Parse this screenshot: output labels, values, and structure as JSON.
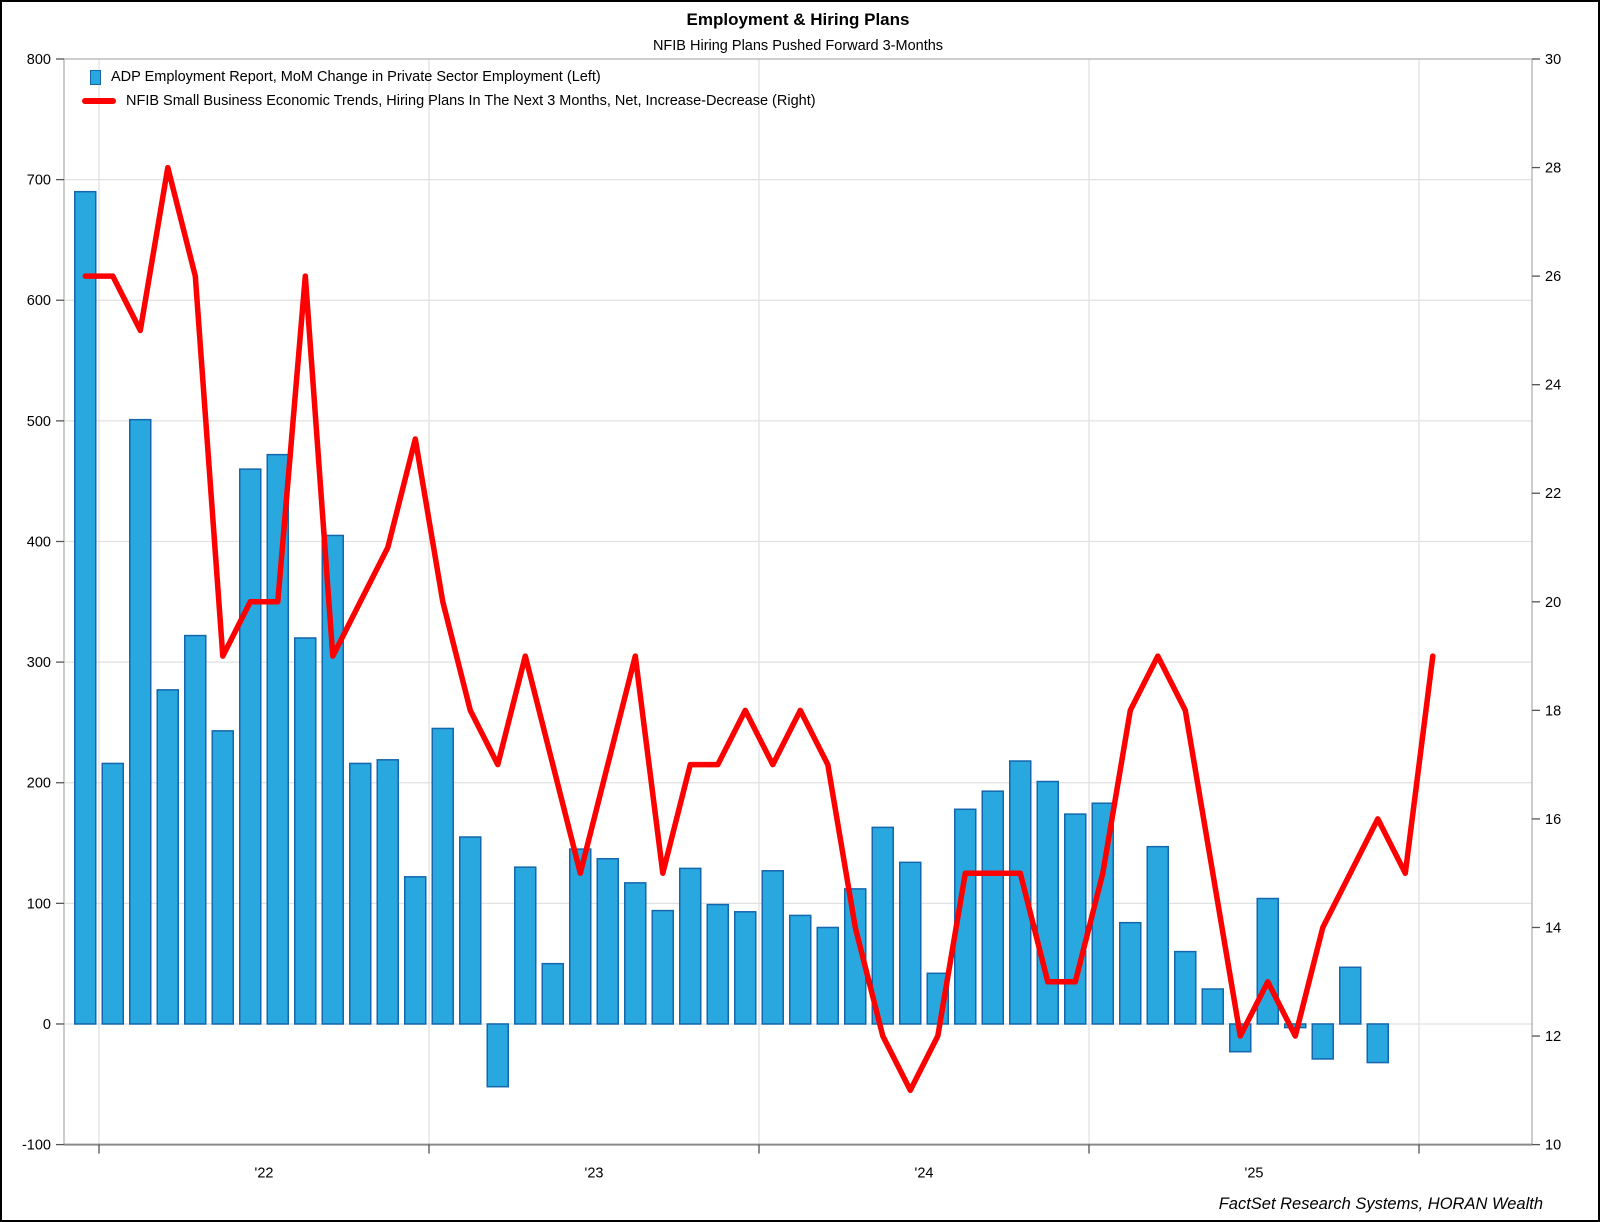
{
  "header": {
    "title": "Employment & Hiring Plans",
    "subtitle": "NFIB Hiring Plans Pushed Forward 3-Months"
  },
  "legend": {
    "adp_label": "ADP Employment Report, MoM Change in Private Sector Employment (Left)",
    "nfib_label": "NFIB Small Business Economic Trends, Hiring Plans In The Next 3 Months, Net, Increase-Decrease (Right)"
  },
  "attribution": "FactSet Research Systems, HORAN Wealth",
  "colors": {
    "bar_fill": "#29a8e0",
    "bar_stroke": "#1466ad",
    "line_color": "#fe0000",
    "grid_color": "#e1e1e1",
    "frame_color": "#b0b0b0",
    "axis_bottom_color": "#8a8a8a",
    "tick_color": "#555555",
    "text_color": "#000000"
  },
  "chart_data": {
    "type": "bar",
    "title": "Employment & Hiring Plans",
    "subtitle": "NFIB Hiring Plans Pushed Forward 3-Months",
    "grid": true,
    "legend_position": "top-left",
    "left_axis": {
      "min": -100,
      "max": 800,
      "tick_step": 100,
      "ticks": [
        "800",
        "700",
        "600",
        "500",
        "400",
        "300",
        "200",
        "100",
        "0",
        "-100"
      ]
    },
    "right_axis": {
      "min": 10,
      "max": 30,
      "tick_step": 2,
      "ticks": [
        "30",
        "28",
        "26",
        "24",
        "22",
        "20",
        "18",
        "16",
        "14",
        "12",
        "10"
      ]
    },
    "x_axis": {
      "year_labels": [
        "'22",
        "'23",
        "'24",
        "'25"
      ],
      "months_start": "2021-12",
      "months_end_bars": "2025-11",
      "months_end_line": "2026-01"
    },
    "bar_months": [
      "2021-12",
      "2022-01",
      "2022-02",
      "2022-03",
      "2022-04",
      "2022-05",
      "2022-06",
      "2022-07",
      "2022-08",
      "2022-09",
      "2022-10",
      "2022-11",
      "2022-12",
      "2023-01",
      "2023-02",
      "2023-03",
      "2023-04",
      "2023-05",
      "2023-06",
      "2023-07",
      "2023-08",
      "2023-09",
      "2023-10",
      "2023-11",
      "2023-12",
      "2024-01",
      "2024-02",
      "2024-03",
      "2024-04",
      "2024-05",
      "2024-06",
      "2024-07",
      "2024-08",
      "2024-09",
      "2024-10",
      "2024-11",
      "2024-12",
      "2025-01",
      "2025-02",
      "2025-03",
      "2025-04",
      "2025-05",
      "2025-06",
      "2025-07",
      "2025-08",
      "2025-09",
      "2025-10",
      "2025-11"
    ],
    "line_months": [
      "2021-12",
      "2022-01",
      "2022-02",
      "2022-03",
      "2022-04",
      "2022-05",
      "2022-06",
      "2022-07",
      "2022-08",
      "2022-09",
      "2022-10",
      "2022-11",
      "2022-12",
      "2023-01",
      "2023-02",
      "2023-03",
      "2023-04",
      "2023-05",
      "2023-06",
      "2023-07",
      "2023-08",
      "2023-09",
      "2023-10",
      "2023-11",
      "2023-12",
      "2024-01",
      "2024-02",
      "2024-03",
      "2024-04",
      "2024-05",
      "2024-06",
      "2024-07",
      "2024-08",
      "2024-09",
      "2024-10",
      "2024-11",
      "2024-12",
      "2025-01",
      "2025-02",
      "2025-03",
      "2025-04",
      "2025-05",
      "2025-06",
      "2025-07",
      "2025-08",
      "2025-09",
      "2025-10",
      "2025-11",
      "2025-12",
      "2026-01"
    ],
    "series": [
      {
        "name": "ADP Employment Report, MoM Change in Private Sector Employment (Left)",
        "type": "bar",
        "axis": "left",
        "values": [
          690,
          216,
          501,
          277,
          322,
          243,
          460,
          472,
          320,
          405,
          216,
          219,
          122,
          245,
          155,
          -52,
          130,
          50,
          145,
          137,
          117,
          94,
          129,
          99,
          93,
          127,
          90,
          80,
          112,
          163,
          134,
          42,
          178,
          193,
          218,
          201,
          174,
          183,
          84,
          147,
          60,
          29,
          -23,
          104,
          -3,
          -29,
          47,
          -32
        ]
      },
      {
        "name": "NFIB Small Business Economic Trends, Hiring Plans In The Next 3 Months, Net, Increase-Decrease (Right)",
        "type": "line",
        "axis": "right",
        "values": [
          26,
          26,
          25,
          28,
          26,
          19,
          20,
          20,
          26,
          19,
          20,
          21,
          23,
          20,
          18,
          17,
          19,
          17,
          15,
          17,
          19,
          15,
          17,
          17,
          18,
          17,
          18,
          17,
          14,
          12,
          11,
          12,
          15,
          15,
          15,
          13,
          13,
          15,
          18,
          19,
          18,
          15,
          12,
          13,
          12,
          14,
          15,
          16,
          15,
          19
        ]
      }
    ]
  }
}
